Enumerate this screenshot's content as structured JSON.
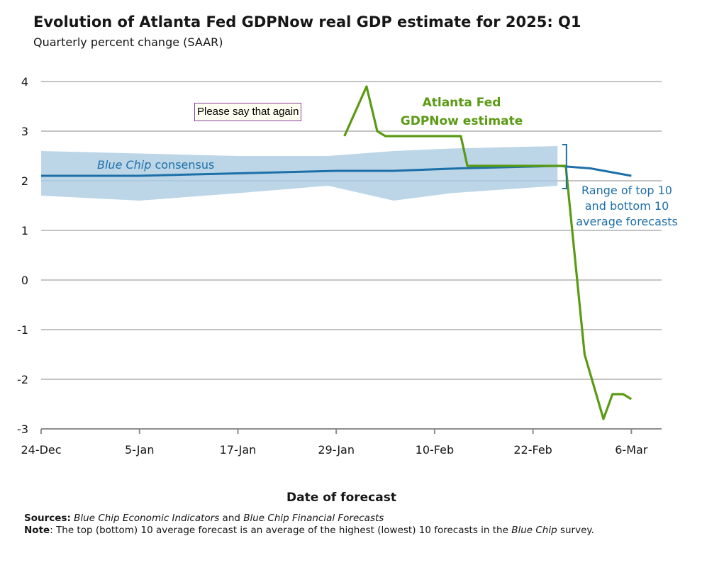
{
  "title": "Evolution of Atlanta Fed GDPNow real GDP estimate for 2025: Q1",
  "subtitle": "Quarterly percent change (SAAR)",
  "popup": {
    "text": "Please say that again"
  },
  "footer": {
    "sources_label": "Sources:",
    "sources_source1": "Blue Chip Economic Indicators",
    "sources_and": " and ",
    "sources_source2": "Blue Chip Financial Forecasts",
    "note_label": "Note",
    "note_text_1": ": The top (bottom) 10 average forecast is an average of the highest (lowest) 10 forecasts in the ",
    "note_italic": "Blue Chip",
    "note_text_2": " survey."
  },
  "chart_data": {
    "type": "line",
    "xlabel": "Date of forecast",
    "ylim": [
      -3,
      4
    ],
    "yticks": [
      "4",
      "3",
      "2",
      "1",
      "0",
      "-1",
      "-2",
      "-3"
    ],
    "xtick_labels": [
      "24-Dec",
      "5-Jan",
      "17-Jan",
      "29-Jan",
      "10-Feb",
      "22-Feb",
      "6-Mar"
    ],
    "xtick_days": [
      0,
      12,
      24,
      36,
      48,
      60,
      72
    ],
    "grid": true,
    "colors": {
      "gdpnow": "#5a9a14",
      "consensus": "#1d6fa8",
      "range": "#bcd6e8",
      "grid": "#c4c4c4"
    },
    "series": [
      {
        "name": "Atlanta Fed GDPNow estimate",
        "label_lines": [
          "Atlanta Fed",
          "GDPNow estimate"
        ],
        "x": [
          "29-Jan",
          "1-Feb",
          "3-Feb",
          "4-Feb",
          "7-Feb",
          "14-Feb",
          "15-Feb",
          "19-Feb",
          "26-Feb",
          "27-Feb",
          "28-Feb",
          "3-Mar",
          "4-Mar",
          "5-Mar",
          "6-Mar"
        ],
        "x_days": [
          37,
          39.7,
          41,
          42,
          45,
          51.2,
          52,
          56,
          63,
          64,
          66.3,
          68.6,
          69.7,
          71,
          72
        ],
        "values": [
          2.9,
          3.9,
          3.0,
          2.9,
          2.9,
          2.9,
          2.3,
          2.3,
          2.3,
          2.3,
          -1.5,
          -2.8,
          -2.3,
          -2.3,
          -2.4
        ]
      },
      {
        "name": "Blue Chip consensus",
        "label_italic": "Blue Chip",
        "label_rest": " consensus",
        "x_days": [
          0,
          12,
          24,
          36,
          43,
          51,
          63,
          67,
          72
        ],
        "values": [
          2.1,
          2.1,
          2.15,
          2.2,
          2.2,
          2.25,
          2.3,
          2.25,
          2.1
        ]
      }
    ],
    "range_band": {
      "name": "Range of top 10 and bottom 10 average forecasts",
      "label_lines": [
        "Range of top 10",
        "and bottom 10",
        "average forecasts"
      ],
      "x_days": [
        0,
        12,
        24,
        35,
        43,
        50,
        63
      ],
      "upper": [
        2.6,
        2.55,
        2.5,
        2.5,
        2.6,
        2.65,
        2.7
      ],
      "lower": [
        1.7,
        1.6,
        1.75,
        1.9,
        1.6,
        1.75,
        1.9
      ]
    }
  }
}
